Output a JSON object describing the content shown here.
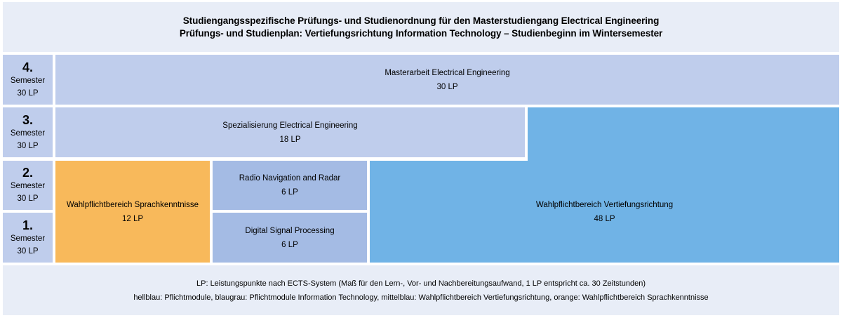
{
  "header": {
    "line1": "Studiengangsspezifische Prüfungs- und Studienordnung für den Masterstudiengang Electrical Engineering",
    "line2": "Prüfungs- und Studienplan: Vertiefungsrichtung Information Technology – Studienbeginn im Wintersemester"
  },
  "semesters": [
    {
      "number": "4.",
      "label": "Semester",
      "lp": "30 LP"
    },
    {
      "number": "3.",
      "label": "Semester",
      "lp": "30 LP"
    },
    {
      "number": "2.",
      "label": "Semester",
      "lp": "30 LP"
    },
    {
      "number": "1.",
      "label": "Semester",
      "lp": "30 LP"
    }
  ],
  "modules": {
    "masterarbeit": {
      "name": "Masterarbeit Electrical Engineering",
      "lp": "30 LP",
      "color": "#bfcdec"
    },
    "spezialisierung": {
      "name": "Spezialisierung Electrical Engineering",
      "lp": "18 LP",
      "color": "#bfcdec"
    },
    "sprachkenntnisse": {
      "name": "Wahlpflichtbereich Sprachkenntnisse",
      "lp": "12 LP",
      "color": "#f8b95b"
    },
    "radio_navigation": {
      "name": "Radio Navigation and Radar",
      "lp": "6 LP",
      "color": "#a4bbe4"
    },
    "digital_signal": {
      "name": "Digital Signal Processing",
      "lp": "6 LP",
      "color": "#a4bbe4"
    },
    "vertiefungsrichtung": {
      "name": "Wahlpflichtbereich Vertiefungsrichtung",
      "lp": "48 LP",
      "color": "#70b3e6"
    }
  },
  "footer": {
    "line1": "LP: Leistungspunkte nach ECTS-System (Maß für den Lern-, Vor- und Nachbereitungsaufwand, 1 LP entspricht ca. 30 Zeitstunden)",
    "line2": "hellblau: Pflichtmodule, blaugrau: Pflichtmodule Information Technology, mittelblau: Wahlpflichtbereich Vertiefungsrichtung, orange: Wahlpflichtbereich Sprachkenntnisse"
  }
}
